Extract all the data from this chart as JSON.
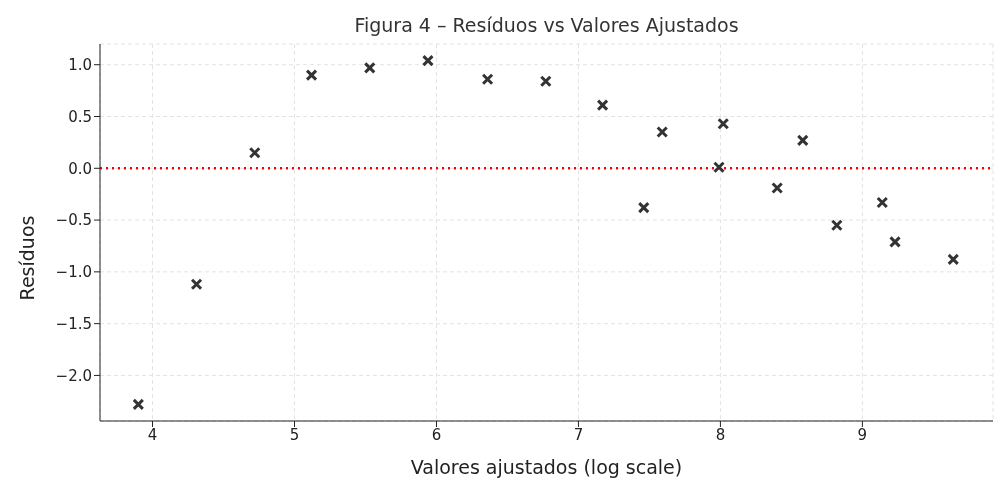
{
  "chart_data": {
    "type": "scatter",
    "title": "Figura 4 – Resíduos vs Valores Ajustados",
    "xlabel": "Valores ajustados (log scale)",
    "ylabel": "Resíduos",
    "x": [
      3.9,
      4.31,
      4.72,
      5.12,
      5.53,
      5.94,
      6.36,
      6.77,
      7.17,
      7.46,
      7.59,
      7.99,
      8.02,
      8.4,
      8.58,
      8.82,
      9.14,
      9.23,
      9.64
    ],
    "series": [
      {
        "color": "#333333",
        "values": [
          -2.28,
          -1.12,
          0.15,
          0.9,
          0.97,
          1.04,
          0.86,
          0.84,
          0.61,
          -0.38,
          0.35,
          0.01,
          0.43,
          -0.19,
          0.27,
          -0.55,
          -0.33,
          -0.71,
          -0.88
        ]
      }
    ],
    "xlim": [
      3.63,
      9.92
    ],
    "xticks": [
      4,
      5,
      6,
      7,
      8,
      9
    ],
    "ylim": [
      -2.44,
      1.2
    ],
    "yticks": [
      {
        "value": -2,
        "label": "−2.0"
      },
      {
        "value": -1.5,
        "label": "−1.5"
      },
      {
        "value": -1,
        "label": "−1.0"
      },
      {
        "value": -0.5,
        "label": "−0.5"
      },
      {
        "value": 0,
        "label": "0.0"
      },
      {
        "value": 0.5,
        "label": "0.5"
      },
      {
        "value": 1,
        "label": "1.0"
      }
    ],
    "ref_lines": [
      {
        "axis": "y",
        "value": 0,
        "color": "#ff0000",
        "line_style": "dotted"
      }
    ],
    "grid": true,
    "marker": "cross"
  }
}
